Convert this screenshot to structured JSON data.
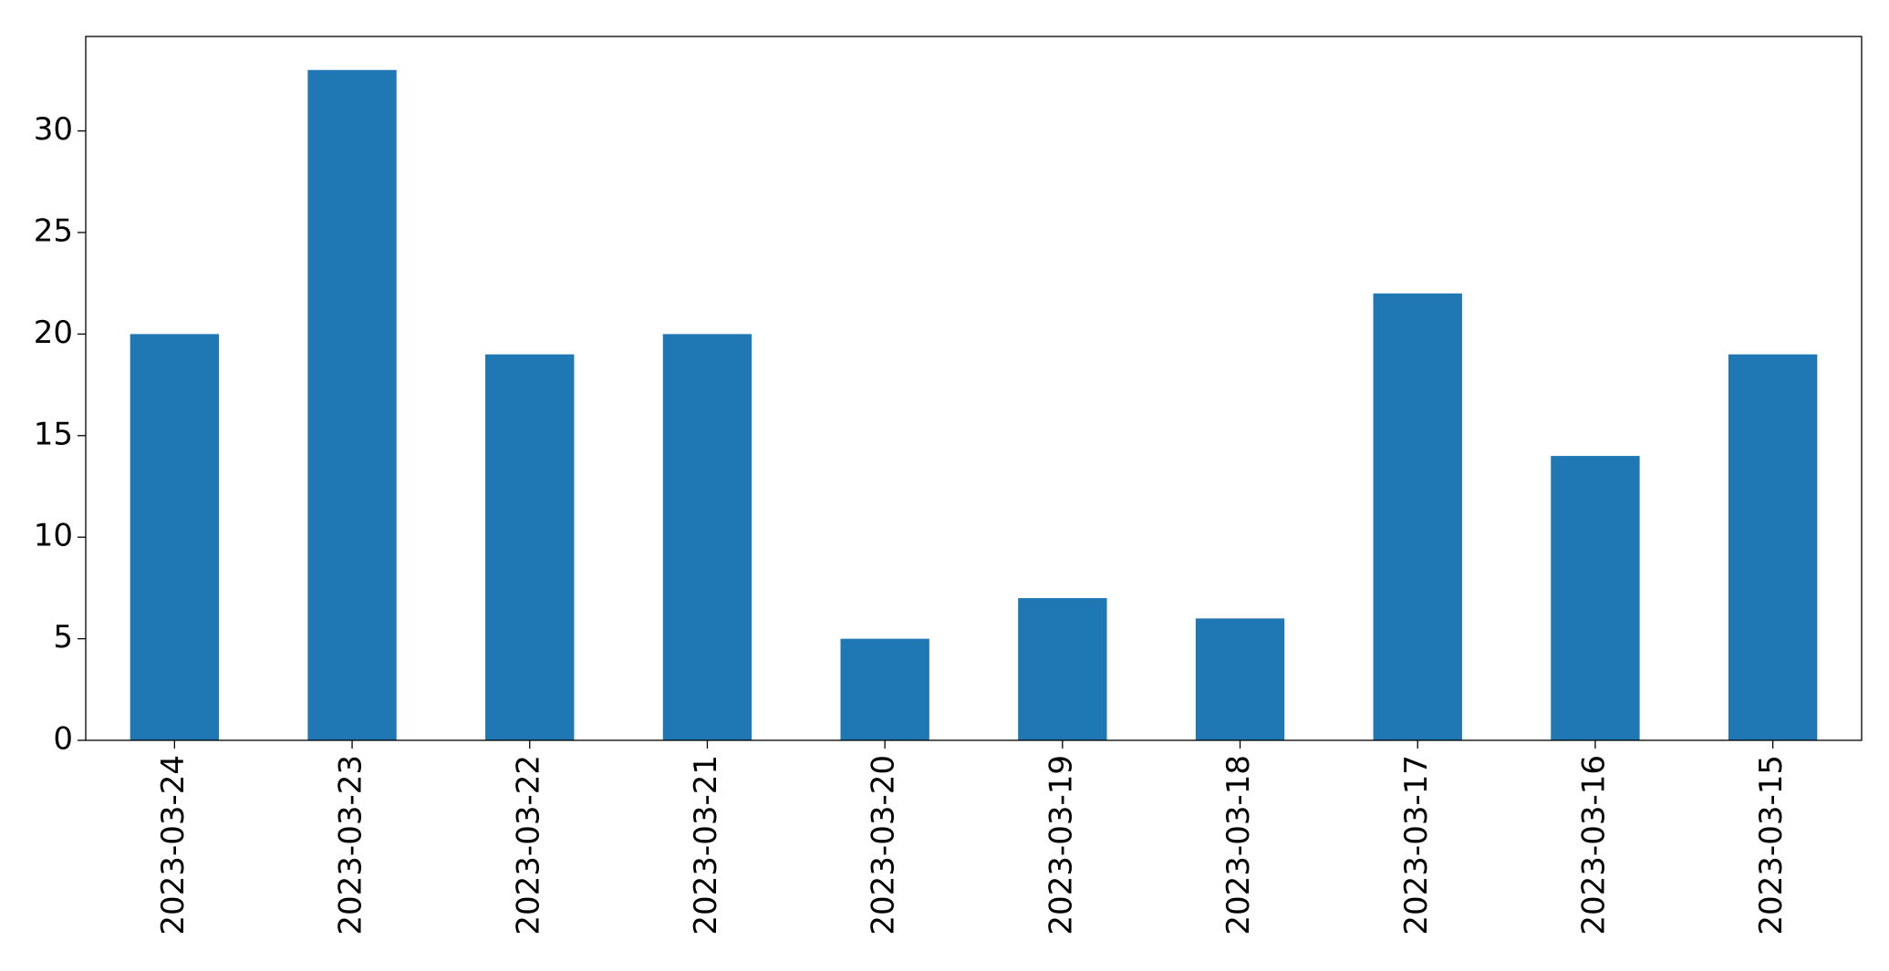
{
  "chart_data": {
    "type": "bar",
    "categories": [
      "2023-03-24",
      "2023-03-23",
      "2023-03-22",
      "2023-03-21",
      "2023-03-20",
      "2023-03-19",
      "2023-03-18",
      "2023-03-17",
      "2023-03-16",
      "2023-03-15"
    ],
    "values": [
      20,
      33,
      19,
      20,
      5,
      7,
      6,
      22,
      14,
      19
    ],
    "color": "#1f77b4",
    "ylim": [
      0,
      34.65
    ],
    "yticks": [
      0,
      5,
      10,
      15,
      20,
      25,
      30
    ],
    "grid": false
  }
}
